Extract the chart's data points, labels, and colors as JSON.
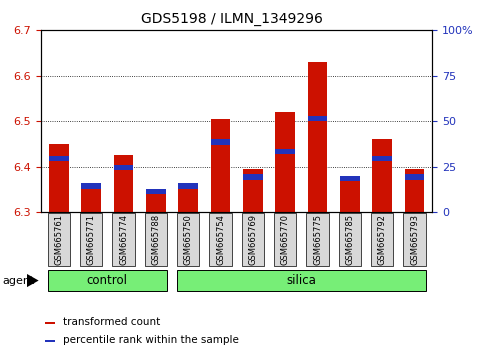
{
  "title": "GDS5198 / ILMN_1349296",
  "samples": [
    "GSM665761",
    "GSM665771",
    "GSM665774",
    "GSM665788",
    "GSM665750",
    "GSM665754",
    "GSM665769",
    "GSM665770",
    "GSM665775",
    "GSM665785",
    "GSM665792",
    "GSM665793"
  ],
  "transformed_count": [
    6.45,
    6.355,
    6.425,
    6.345,
    6.355,
    6.505,
    6.395,
    6.52,
    6.63,
    6.38,
    6.46,
    6.395
  ],
  "percentile_rank_pct": [
    28,
    13,
    23,
    10,
    13,
    37,
    18,
    32,
    50,
    17,
    28,
    18
  ],
  "ylim_left": [
    6.3,
    6.7
  ],
  "ylim_right": [
    0,
    100
  ],
  "yticks_left": [
    6.3,
    6.4,
    6.5,
    6.6,
    6.7
  ],
  "yticks_right": [
    0,
    25,
    50,
    75,
    100
  ],
  "ytick_labels_right": [
    "0",
    "25",
    "50",
    "75",
    "100%"
  ],
  "bar_color_red": "#cc1100",
  "bar_color_blue": "#2233bb",
  "bar_width": 0.6,
  "baseline": 6.3,
  "legend_red": "transformed count",
  "legend_blue": "percentile rank within the sample",
  "agent_label": "agent",
  "group_control": "control",
  "group_silica": "silica",
  "control_indices": [
    0,
    1,
    2,
    3
  ],
  "silica_indices": [
    4,
    5,
    6,
    7,
    8,
    9,
    10,
    11
  ],
  "bg_color_group": "#77ee77",
  "title_fontsize": 10,
  "tick_fontsize": 8,
  "axis_color_left": "#cc1100",
  "axis_color_right": "#2233bb",
  "box_bg": "#d8d8d8"
}
